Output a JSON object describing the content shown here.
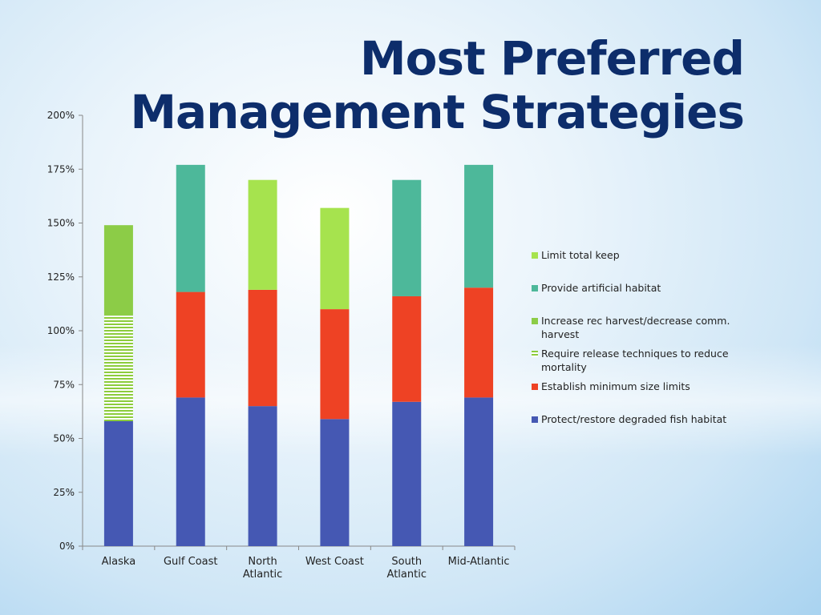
{
  "title": {
    "line1": "Most Preferred",
    "line2": "Management Strategies"
  },
  "chart_data": {
    "type": "bar",
    "stacked": true,
    "categories": [
      [
        "Alaska"
      ],
      [
        "Gulf Coast"
      ],
      [
        "North",
        "Atlantic"
      ],
      [
        "West Coast"
      ],
      [
        "South",
        "Atlantic"
      ],
      [
        "Mid-Atlantic"
      ]
    ],
    "ylim": [
      0,
      200
    ],
    "yticks": [
      "0%",
      "25%",
      "50%",
      "75%",
      "100%",
      "125%",
      "150%",
      "175%",
      "200%"
    ],
    "grid": false,
    "legend_position": "right",
    "series": [
      {
        "name": "Protect/restore degraded fish habitat",
        "color": "#4558b3",
        "values": [
          58,
          69,
          65,
          59,
          67,
          69
        ]
      },
      {
        "name": "Establish minimum size limits",
        "color": "#ee4224",
        "values": [
          0,
          49,
          54,
          51,
          49,
          51
        ]
      },
      {
        "name": "Require release techniques to reduce mortality",
        "color": "#8ccc3c",
        "pattern": "horizontal-stripes",
        "values": [
          49,
          0,
          0,
          0,
          0,
          0
        ]
      },
      {
        "name": "Increase rec harvest/decrease comm. harvest",
        "color": "#8ccc47",
        "values": [
          42,
          0,
          0,
          0,
          0,
          0
        ]
      },
      {
        "name": "Provide artificial habitat",
        "color": "#4db89a",
        "values": [
          0,
          59,
          0,
          0,
          54,
          57
        ]
      },
      {
        "name": "Limit total keep",
        "color": "#a6e34e",
        "values": [
          0,
          0,
          51,
          47,
          0,
          0
        ]
      }
    ],
    "legend_order": [
      5,
      4,
      3,
      2,
      1,
      0
    ]
  }
}
